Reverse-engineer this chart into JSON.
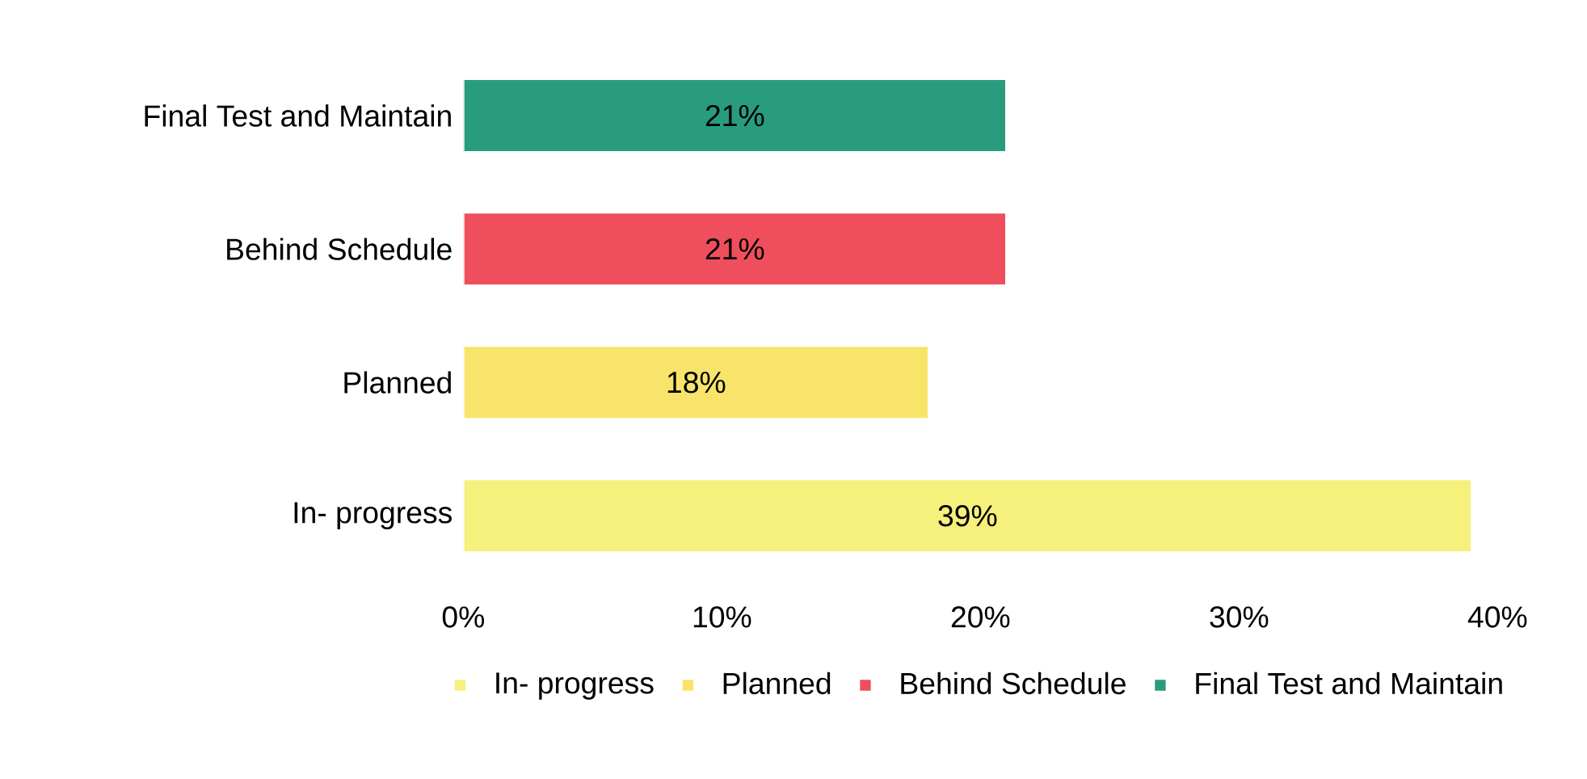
{
  "chart_data": {
    "type": "bar",
    "orientation": "horizontal",
    "categories": [
      "Final Test and Maintain",
      "Behind Schedule",
      "Planned",
      "In- progress"
    ],
    "series": [
      {
        "name": "In- progress",
        "color": "#f6f07c",
        "values": [
          null,
          null,
          null,
          39
        ],
        "value_labels": [
          null,
          null,
          null,
          "39%"
        ]
      },
      {
        "name": "Planned",
        "color": "#f8e46a",
        "values": [
          null,
          null,
          18,
          null
        ],
        "value_labels": [
          null,
          null,
          "18%",
          null
        ]
      },
      {
        "name": "Behind Schedule",
        "color": "#ef4f5c",
        "values": [
          null,
          21,
          null,
          null
        ],
        "value_labels": [
          null,
          "21%",
          null,
          null
        ]
      },
      {
        "name": "Final Test and Maintain",
        "color": "#2a9c7e",
        "values": [
          21,
          null,
          null,
          null
        ],
        "value_labels": [
          "21%",
          null,
          null,
          null
        ]
      }
    ],
    "xlim": [
      0,
      40
    ],
    "xticks": [
      {
        "value": 0,
        "label": "0%"
      },
      {
        "value": 10,
        "label": "10%"
      },
      {
        "value": 20,
        "label": "20%"
      },
      {
        "value": 30,
        "label": "30%"
      },
      {
        "value": 40,
        "label": "40%"
      }
    ],
    "grid": false,
    "legend": "bottom"
  }
}
